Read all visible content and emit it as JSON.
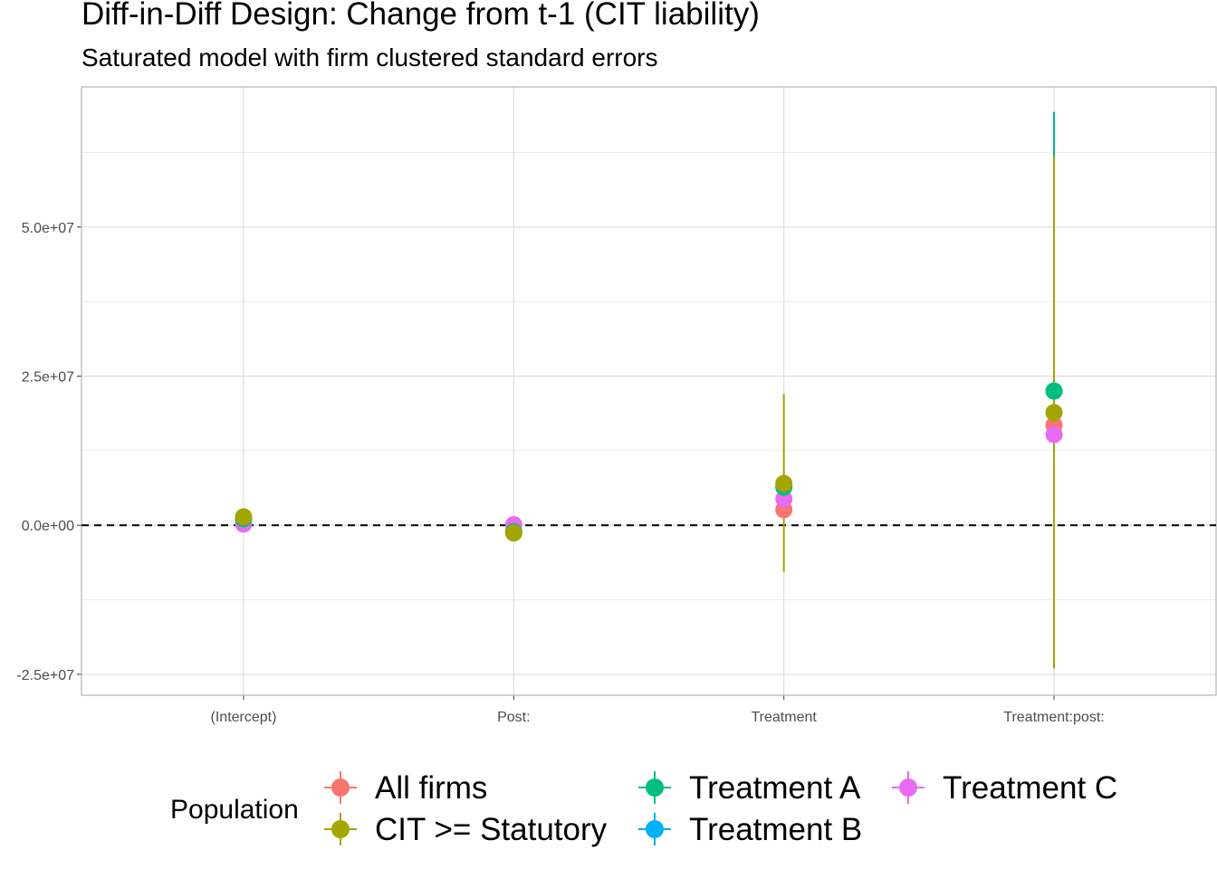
{
  "chart_data": {
    "type": "scatter",
    "title": "Diff-in-Diff Design: Change from t-1 (CIT liability)",
    "subtitle": "Saturated model with firm clustered standard errors",
    "xlabel": "",
    "ylabel": "",
    "categories": [
      "(Intercept)",
      "Post:",
      "Treatment",
      "Treatment:post:"
    ],
    "ylim": [
      -28500000,
      73500000
    ],
    "yticks": [
      -25000000,
      0,
      25000000,
      50000000
    ],
    "ytick_labels": [
      "-2.5e+07",
      "0.0e+00",
      "2.5e+07",
      "5.0e+07"
    ],
    "grid": true,
    "reference_line": {
      "y": 0,
      "style": "dashed"
    },
    "legend": {
      "title": "Population",
      "position": "bottom"
    },
    "series": [
      {
        "name": "All firms",
        "color": "#F8766D",
        "values": [
          1000000,
          -1000000,
          2600000,
          16800000
        ],
        "lower": [
          null,
          null,
          null,
          null
        ],
        "upper": [
          null,
          null,
          null,
          null
        ]
      },
      {
        "name": "CIT >= Statutory",
        "color": "#A3A500",
        "values": [
          1400000,
          -1300000,
          7000000,
          18900000
        ],
        "lower": [
          null,
          null,
          -7800000,
          -24000000
        ],
        "upper": [
          null,
          null,
          22000000,
          61800000
        ]
      },
      {
        "name": "Treatment A",
        "color": "#00BF7D",
        "values": [
          1100000,
          -1100000,
          6400000,
          22500000
        ],
        "lower": [
          null,
          null,
          null,
          -23800000
        ],
        "upper": [
          null,
          null,
          null,
          69300000
        ]
      },
      {
        "name": "Treatment B",
        "color": "#00B0F6",
        "values": [
          1100000,
          -1100000,
          6400000,
          22500000
        ],
        "lower": [
          null,
          null,
          null,
          null
        ],
        "upper": [
          null,
          null,
          null,
          null
        ]
      },
      {
        "name": "Treatment C",
        "color": "#E76BF3",
        "values": [
          200000,
          100000,
          4400000,
          15200000
        ],
        "lower": [
          null,
          null,
          null,
          null
        ],
        "upper": [
          null,
          null,
          null,
          null
        ]
      }
    ]
  }
}
